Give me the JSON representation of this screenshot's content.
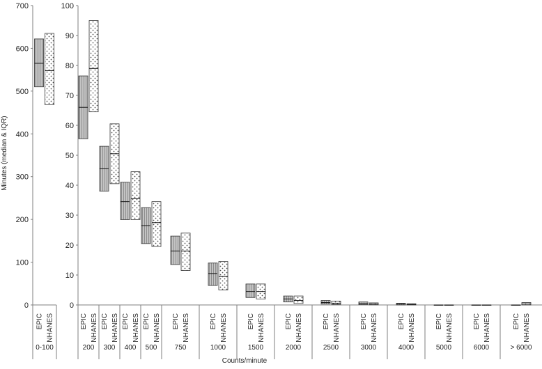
{
  "chart_data": {
    "type": "boxplot",
    "xlabel": "Counts/minute",
    "ylabel": "Minutes (median & IQR)",
    "series": [
      {
        "name": "EPIC",
        "fill": "#bfbfbf",
        "pattern": "hatch"
      },
      {
        "name": "NHANES",
        "fill": "#ffffff",
        "pattern": "dots"
      }
    ],
    "left_panel": {
      "ylim": [
        0,
        700
      ],
      "yticks": [
        0,
        100,
        200,
        300,
        400,
        500,
        600,
        700
      ],
      "groups": [
        {
          "label": "0-100",
          "EPIC": {
            "q1": 510,
            "median": 565,
            "q3": 622
          },
          "NHANES": {
            "q1": 468,
            "median": 548,
            "q3": 635
          }
        }
      ]
    },
    "right_panel": {
      "ylim": [
        0,
        100
      ],
      "yticks": [
        0,
        10,
        20,
        30,
        40,
        50,
        60,
        70,
        80,
        90,
        100
      ],
      "groups": [
        {
          "label": "200",
          "EPIC": {
            "q1": 55.5,
            "median": 66,
            "q3": 76.5
          },
          "NHANES": {
            "q1": 64.5,
            "median": 79,
            "q3": 95
          }
        },
        {
          "label": "300",
          "EPIC": {
            "q1": 38,
            "median": 45.5,
            "q3": 53
          },
          "NHANES": {
            "q1": 40.5,
            "median": 50.5,
            "q3": 60.5
          }
        },
        {
          "label": "400",
          "EPIC": {
            "q1": 28.5,
            "median": 34.5,
            "q3": 41
          },
          "NHANES": {
            "q1": 28.5,
            "median": 35.5,
            "q3": 44.5
          }
        },
        {
          "label": "500",
          "EPIC": {
            "q1": 20.5,
            "median": 26.5,
            "q3": 32.5
          },
          "NHANES": {
            "q1": 19.5,
            "median": 27.5,
            "q3": 34.5
          }
        },
        {
          "label": "750",
          "EPIC": {
            "q1": 13.5,
            "median": 18,
            "q3": 23
          },
          "NHANES": {
            "q1": 11.5,
            "median": 18,
            "q3": 24
          }
        },
        {
          "label": "1000",
          "EPIC": {
            "q1": 6.5,
            "median": 10.5,
            "q3": 14
          },
          "NHANES": {
            "q1": 5,
            "median": 9.5,
            "q3": 14.5
          }
        },
        {
          "label": "1500",
          "EPIC": {
            "q1": 2.5,
            "median": 4.5,
            "q3": 7
          },
          "NHANES": {
            "q1": 2,
            "median": 4.5,
            "q3": 7
          }
        },
        {
          "label": "2000",
          "EPIC": {
            "q1": 1,
            "median": 2,
            "q3": 3
          },
          "NHANES": {
            "q1": 0.5,
            "median": 1.5,
            "q3": 3
          }
        },
        {
          "label": "2500",
          "EPIC": {
            "q1": 0.3,
            "median": 0.8,
            "q3": 1.5
          },
          "NHANES": {
            "q1": 0.2,
            "median": 0.6,
            "q3": 1.3
          }
        },
        {
          "label": "3000",
          "EPIC": {
            "q1": 0.1,
            "median": 0.5,
            "q3": 1
          },
          "NHANES": {
            "q1": 0.05,
            "median": 0.3,
            "q3": 0.7
          }
        },
        {
          "label": "4000",
          "EPIC": {
            "q1": 0,
            "median": 0.3,
            "q3": 0.6
          },
          "NHANES": {
            "q1": 0,
            "median": 0.2,
            "q3": 0.4
          }
        },
        {
          "label": "5000",
          "EPIC": {
            "q1": 0,
            "median": 0,
            "q3": 0
          },
          "NHANES": {
            "q1": 0,
            "median": 0,
            "q3": 0
          }
        },
        {
          "label": "6000",
          "EPIC": {
            "q1": 0,
            "median": 0,
            "q3": 0
          },
          "NHANES": {
            "q1": 0,
            "median": 0,
            "q3": 0
          }
        },
        {
          "label": "> 6000",
          "EPIC": {
            "q1": 0,
            "median": 0,
            "q3": 0
          },
          "NHANES": {
            "q1": 0,
            "median": 0.3,
            "q3": 0.8
          }
        }
      ]
    }
  }
}
